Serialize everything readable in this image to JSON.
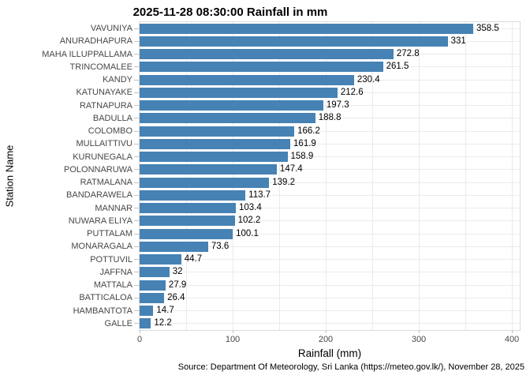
{
  "chart_data": {
    "type": "bar",
    "orientation": "horizontal",
    "title": "2025-11-28 08:30:00 Rainfall in mm",
    "xlabel": "Rainfall (mm)",
    "ylabel": "Station Name",
    "categories": [
      "VAVUNIYA",
      "ANURADHAPURA",
      "MAHA ILLUPPALLAMA",
      "TRINCOMALEE",
      "KANDY",
      "KATUNAYAKE",
      "RATNAPURA",
      "BADULLA",
      "COLOMBO",
      "MULLAITTIVU",
      "KURUNEGALA",
      "POLONNARUWA",
      "RATMALANA",
      "BANDARAWELA",
      "MANNAR",
      "NUWARA ELIYA",
      "PUTTALAM",
      "MONARAGALA",
      "POTTUVIL",
      "JAFFNA",
      "MATTALA",
      "BATTICALOA",
      "HAMBANTOTA",
      "GALLE"
    ],
    "values": [
      358.5,
      331,
      272.8,
      261.5,
      230.4,
      212.6,
      197.3,
      188.8,
      166.2,
      161.9,
      158.9,
      147.4,
      139.2,
      113.7,
      103.4,
      102.2,
      100.1,
      73.6,
      44.7,
      32,
      27.9,
      26.4,
      14.7,
      12.2
    ],
    "value_labels": [
      "358.5",
      "331",
      "272.8",
      "261.5",
      "230.4",
      "212.6",
      "197.3",
      "188.8",
      "166.2",
      "161.9",
      "158.9",
      "147.4",
      "139.2",
      "113.7",
      "103.4",
      "102.2",
      "100.1",
      "73.6",
      "44.7",
      "32",
      "27.9",
      "26.4",
      "14.7",
      "12.2"
    ],
    "x_ticks": [
      0,
      100,
      200,
      300,
      400
    ],
    "x_grid_step": 50,
    "xlim": [
      0,
      408
    ],
    "grid": true,
    "legend": "none",
    "bar_color": "#4682B4",
    "caption": "Source: Department Of Meteorology, Sri Lanka (https://meteo.gov.lk/), November 28, 2025"
  }
}
